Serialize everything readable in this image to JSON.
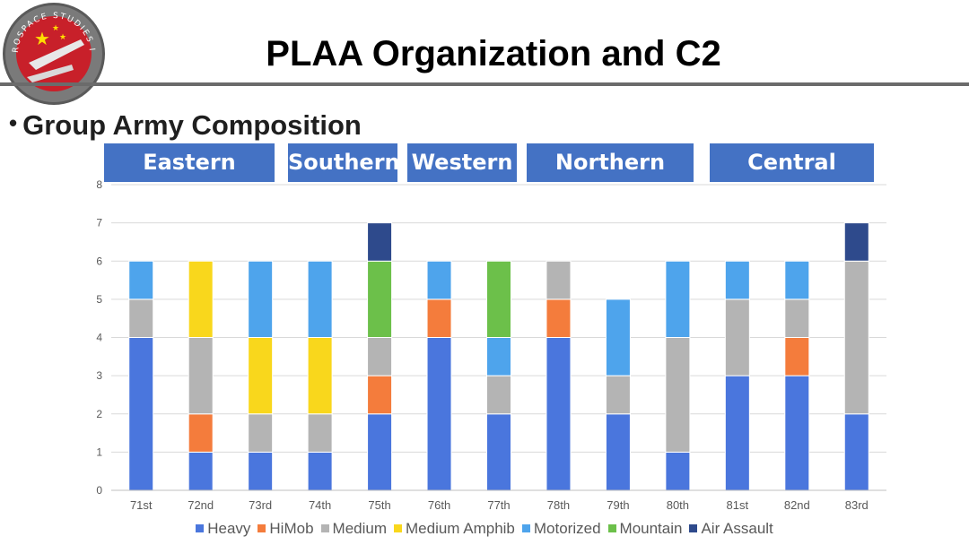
{
  "slide": {
    "title": "PLAA Organization and C2",
    "subtitle": "Group Army Composition",
    "bullet": "•",
    "logo_text": "CHINA AEROSPACE STUDIES INSTITUTE"
  },
  "regions": [
    {
      "label": "Eastern"
    },
    {
      "label": "Southern"
    },
    {
      "label": "Western"
    },
    {
      "label": "Northern"
    },
    {
      "label": "Central"
    }
  ],
  "chart_data": {
    "type": "bar",
    "stacked": true,
    "title": "",
    "xlabel": "",
    "ylabel": "",
    "ylim": [
      0,
      8
    ],
    "yticks": [
      "0",
      "1",
      "2",
      "3",
      "4",
      "5",
      "6",
      "7",
      "8"
    ],
    "grid": true,
    "legend_position": "bottom",
    "categories": [
      "71st",
      "72nd",
      "73rd",
      "74th",
      "75th",
      "76th",
      "77th",
      "78th",
      "79th",
      "80th",
      "81st",
      "82nd",
      "83rd"
    ],
    "series": [
      {
        "name": "Heavy",
        "color": "#4a76dd",
        "values": [
          4,
          1,
          1,
          1,
          2,
          4,
          2,
          4,
          2,
          1,
          3,
          3,
          2
        ]
      },
      {
        "name": "HiMob",
        "color": "#f47c3c",
        "values": [
          0,
          1,
          0,
          0,
          1,
          1,
          0,
          1,
          0,
          0,
          0,
          1,
          0
        ]
      },
      {
        "name": "Medium",
        "color": "#b4b4b4",
        "values": [
          1,
          2,
          1,
          1,
          1,
          0,
          1,
          1,
          1,
          3,
          2,
          1,
          4
        ]
      },
      {
        "name": "Medium Amphib",
        "color": "#f9d71c",
        "values": [
          0,
          2,
          2,
          2,
          0,
          0,
          0,
          0,
          0,
          0,
          0,
          0,
          0
        ]
      },
      {
        "name": "Motorized",
        "color": "#4ea4ec",
        "values": [
          1,
          0,
          2,
          2,
          0,
          1,
          1,
          0,
          2,
          2,
          1,
          1,
          0
        ]
      },
      {
        "name": "Mountain",
        "color": "#6cc04a",
        "values": [
          0,
          0,
          0,
          0,
          2,
          0,
          2,
          0,
          0,
          0,
          0,
          0,
          0
        ]
      },
      {
        "name": "Air Assault",
        "color": "#2e4a8c",
        "values": [
          0,
          0,
          0,
          0,
          1,
          0,
          0,
          0,
          0,
          0,
          0,
          0,
          1
        ]
      }
    ]
  }
}
